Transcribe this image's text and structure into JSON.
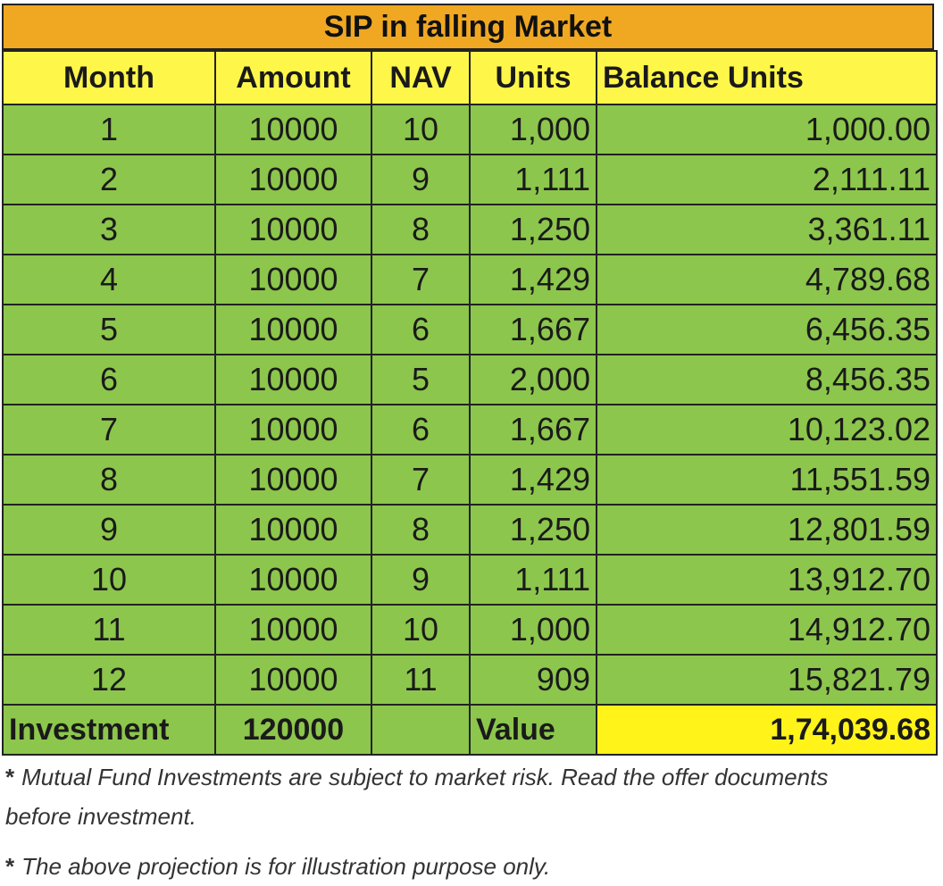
{
  "chart_data": {
    "type": "table",
    "title": "SIP in falling Market",
    "columns": [
      "Month",
      "Amount",
      "NAV",
      "Units",
      "Balance Units"
    ],
    "rows": [
      [
        "1",
        "10000",
        "10",
        "1,000",
        "1,000.00"
      ],
      [
        "2",
        "10000",
        "9",
        "1,111",
        "2,111.11"
      ],
      [
        "3",
        "10000",
        "8",
        "1,250",
        "3,361.11"
      ],
      [
        "4",
        "10000",
        "7",
        "1,429",
        "4,789.68"
      ],
      [
        "5",
        "10000",
        "6",
        "1,667",
        "6,456.35"
      ],
      [
        "6",
        "10000",
        "5",
        "2,000",
        "8,456.35"
      ],
      [
        "7",
        "10000",
        "6",
        "1,667",
        "10,123.02"
      ],
      [
        "8",
        "10000",
        "7",
        "1,429",
        "11,551.59"
      ],
      [
        "9",
        "10000",
        "8",
        "1,250",
        "12,801.59"
      ],
      [
        "10",
        "10000",
        "9",
        "1,111",
        "13,912.70"
      ],
      [
        "11",
        "10000",
        "10",
        "1,000",
        "14,912.70"
      ],
      [
        "12",
        "10000",
        "11",
        "909",
        "15,821.79"
      ]
    ],
    "footer": {
      "investment_label": "Investment",
      "investment_value": "120000",
      "value_label": "Value",
      "value_amount": "1,74,039.68"
    }
  },
  "notes": [
    "Mutual Fund Investments are subject to market risk. Read the offer documents before investment.",
    "The above projection is for illustration purpose only."
  ],
  "note_marker": "*",
  "colors": {
    "title_bg": "#f0a822",
    "header_bg": "#fff64a",
    "row_bg": "#8cc64c",
    "value_highlight": "#fff31a"
  }
}
